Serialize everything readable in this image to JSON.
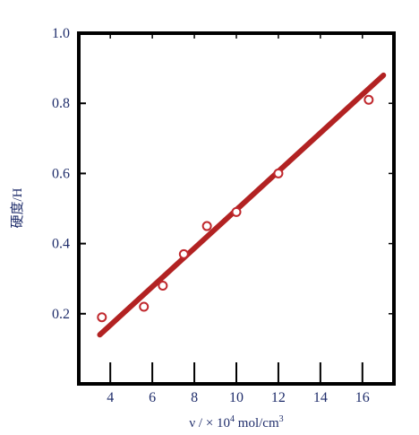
{
  "chart_data": {
    "type": "scatter",
    "xlabel_main": "ν / × 10",
    "xlabel_exp": "4",
    "xlabel_unit": "mol/cm",
    "xlabel_unit_exp": "3",
    "ylabel": "硬度/H",
    "xlim": [
      2.5,
      17.5
    ],
    "ylim": [
      0.0,
      1.0
    ],
    "x_ticks": [
      4,
      6,
      8,
      10,
      12,
      14,
      16
    ],
    "x_tick_labels": [
      "4",
      "6",
      "8",
      "10",
      "12",
      "14",
      "16"
    ],
    "y_ticks": [
      0.2,
      0.4,
      0.6,
      0.8,
      1.0
    ],
    "y_tick_labels": [
      "0.2",
      "0.4",
      "0.6",
      "0.8",
      "1.0"
    ],
    "grid": false,
    "series": [
      {
        "kind": "points",
        "x": [
          3.6,
          5.6,
          6.5,
          7.5,
          8.6,
          10.0,
          12.0,
          16.3
        ],
        "y": [
          0.19,
          0.22,
          0.28,
          0.37,
          0.45,
          0.49,
          0.6,
          0.81
        ]
      },
      {
        "kind": "fit-line",
        "x": [
          3.5,
          17.0
        ],
        "y": [
          0.14,
          0.88
        ]
      }
    ],
    "colors": {
      "points": "#c0282d",
      "line": "#b22222",
      "frame": "#000000",
      "text": "#1f2d6b"
    }
  }
}
